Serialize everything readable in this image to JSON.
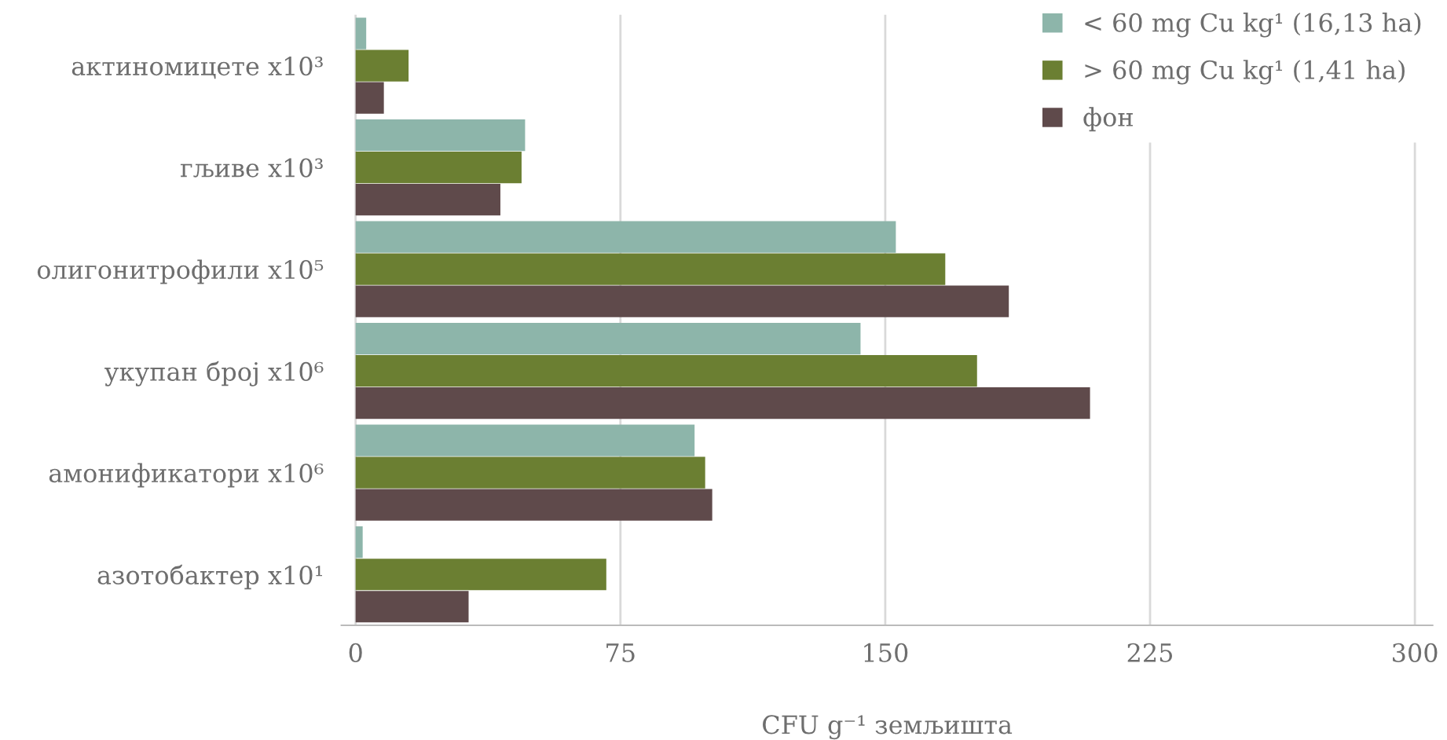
{
  "chart_data": {
    "type": "bar",
    "orientation": "horizontal",
    "xlabel": "CFU g⁻¹ земљишта",
    "categories": [
      "актиномицете x10³",
      "гљиве x10³",
      "олигонитрофили x10⁵",
      "укупан број x10⁶",
      "амонификатори x10⁶",
      "азотобактер x10¹"
    ],
    "series": [
      {
        "name": "< 60 mg Cu kg¹ (16,13 ha)",
        "color": "#8db5aa",
        "values": [
          3,
          48,
          153,
          143,
          96,
          2
        ]
      },
      {
        "name": "> 60 mg Cu kg¹ (1,41 ha)",
        "color": "#6b7f32",
        "values": [
          15,
          47,
          167,
          176,
          99,
          71
        ]
      },
      {
        "name": "фон",
        "color": "#5f4a4b",
        "values": [
          8,
          41,
          185,
          208,
          101,
          32
        ]
      }
    ],
    "xlim": [
      -4,
      305
    ],
    "xticks": [
      0,
      75,
      150,
      225,
      300
    ],
    "grid": "x",
    "legend": "top right"
  }
}
